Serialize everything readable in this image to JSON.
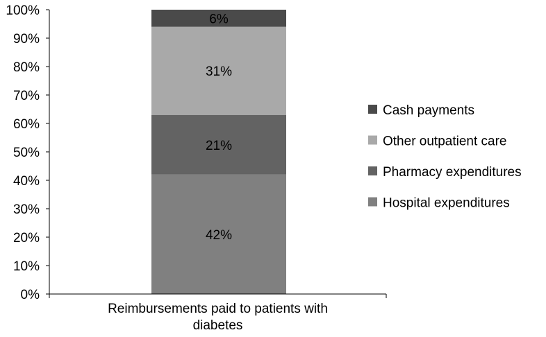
{
  "chart_data": {
    "type": "bar",
    "stacked": true,
    "categories": [
      "Reimbursements paid to patients with diabetes"
    ],
    "category_lines": [
      "Reimbursements paid to patients with",
      "diabetes"
    ],
    "series": [
      {
        "name": "Hospital expenditures",
        "values": [
          42
        ],
        "label": "42%",
        "color": "#808080"
      },
      {
        "name": "Pharmacy expenditures",
        "values": [
          21
        ],
        "label": "21%",
        "color": "#636363"
      },
      {
        "name": "Other outpatient care",
        "values": [
          31
        ],
        "label": "31%",
        "color": "#a9a9a9"
      },
      {
        "name": "Cash payments",
        "values": [
          6
        ],
        "label": "6%",
        "color": "#4a4a4a"
      }
    ],
    "legend_order": [
      "Cash payments",
      "Other outpatient care",
      "Pharmacy expenditures",
      "Hospital expenditures"
    ],
    "y_ticks": [
      "0%",
      "10%",
      "20%",
      "30%",
      "40%",
      "50%",
      "60%",
      "70%",
      "80%",
      "90%",
      "100%"
    ],
    "ylim": [
      0,
      100
    ],
    "grid": false,
    "legend_position": "right",
    "title": "",
    "xlabel": "",
    "ylabel": ""
  }
}
